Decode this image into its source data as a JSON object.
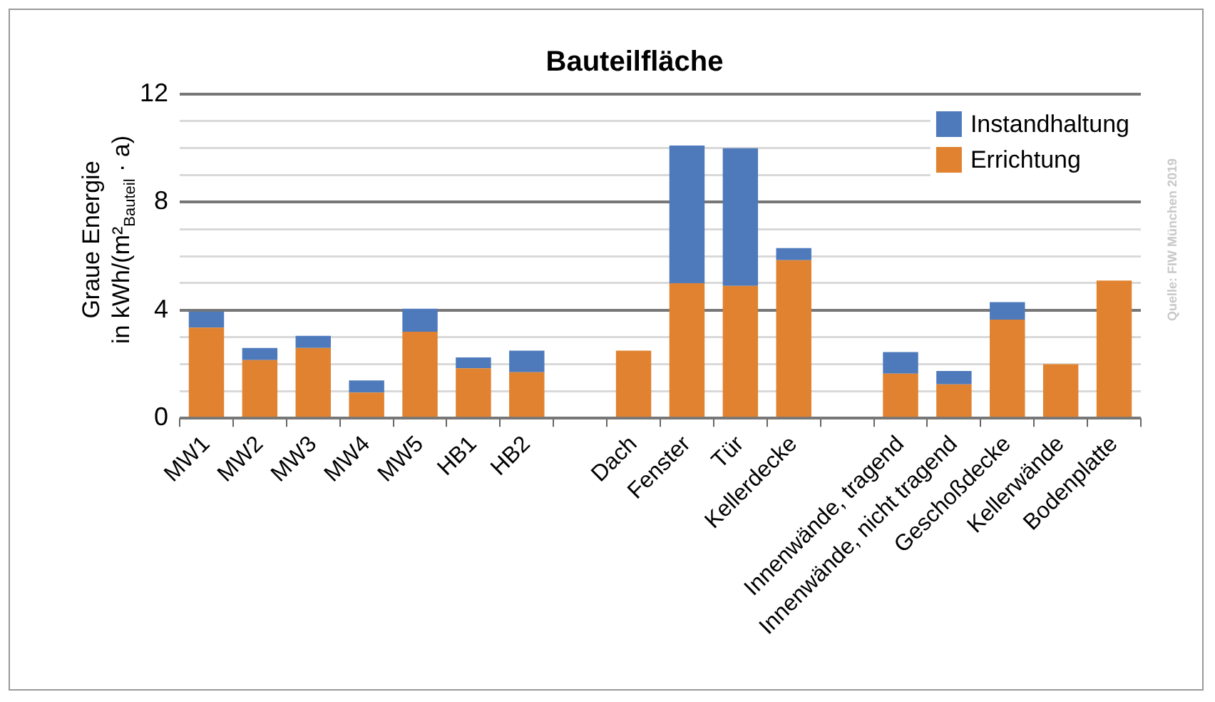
{
  "chart_data": {
    "type": "bar",
    "title": "Bauteilfläche",
    "ylabel": "Graue Energie\nin kWh/(m²$_{Bauteil}$ · a)",
    "categories": [
      "MW1",
      "MW2",
      "MW3",
      "MW4",
      "MW5",
      "HB1",
      "HB2",
      null,
      "Dach",
      "Fenster",
      "Tür",
      "Kellerdecke",
      null,
      "Innenwände, tragend",
      "Innenwände, nicht tragend",
      "Geschoßdecke",
      "Kellerwände",
      "Bodenplatte"
    ],
    "stacked": true,
    "series": [
      {
        "name": "Errichtung",
        "color": "#e0822f",
        "values": [
          3.35,
          2.15,
          2.6,
          0.95,
          3.2,
          1.85,
          1.7,
          null,
          2.5,
          5.0,
          4.9,
          5.85,
          null,
          1.65,
          1.25,
          3.65,
          2.0,
          5.1
        ]
      },
      {
        "name": "Instandhaltung",
        "color": "#4e7abb",
        "values": [
          0.6,
          0.45,
          0.45,
          0.45,
          0.85,
          0.4,
          0.8,
          null,
          0,
          5.1,
          5.1,
          0.45,
          null,
          0.8,
          0.5,
          0.65,
          0,
          0
        ]
      }
    ],
    "ylim": [
      0,
      12
    ],
    "yticks": [
      0,
      {
        "value": 1,
        "label": null
      },
      {
        "value": 2,
        "label": null
      },
      {
        "value": 3,
        "label": null
      },
      4,
      {
        "value": 5,
        "label": null
      },
      {
        "value": 6,
        "label": null
      },
      {
        "value": 7,
        "label": null
      },
      8,
      {
        "value": 9,
        "label": null
      },
      {
        "value": 10,
        "label": null
      },
      {
        "value": 11,
        "label": null
      },
      12
    ],
    "grid": "y",
    "legend": "top right",
    "annotations": [
      "Quelle: FIW München 2019"
    ]
  }
}
